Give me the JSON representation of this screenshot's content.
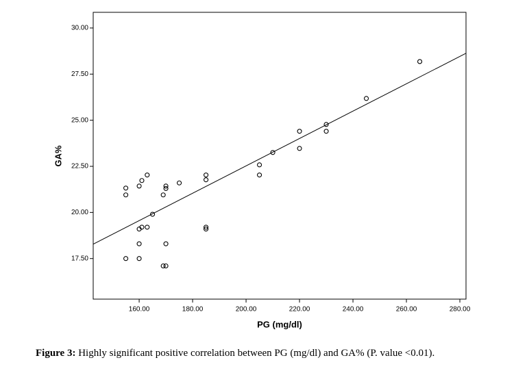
{
  "chart_data": {
    "type": "scatter",
    "xlabel": "PG (mg/dl)",
    "ylabel": "GA%",
    "x": [
      155,
      155,
      155,
      160,
      161,
      163,
      160,
      161,
      163,
      165,
      160,
      160,
      169,
      170,
      170,
      170,
      169,
      170,
      175,
      185,
      185,
      185,
      185,
      205,
      205,
      210,
      220,
      220,
      230,
      230,
      245,
      265
    ],
    "y": [
      21.32,
      20.95,
      17.5,
      21.43,
      21.73,
      22.03,
      19.1,
      19.2,
      19.2,
      19.9,
      18.3,
      17.5,
      20.95,
      21.43,
      21.3,
      18.3,
      17.1,
      17.1,
      21.6,
      22.03,
      21.77,
      19.2,
      19.1,
      22.58,
      22.03,
      23.25,
      24.4,
      23.47,
      24.77,
      24.4,
      26.18,
      28.18
    ],
    "color": "#000000",
    "trend_line": {
      "x": [
        142.8,
        282.3
      ],
      "y": [
        18.28,
        28.63
      ]
    },
    "xlim": [
      142.8,
      282.3
    ],
    "ylim": [
      15.3,
      30.85
    ],
    "xticks": [
      {
        "value": 160,
        "label": "160.00"
      },
      {
        "value": 180,
        "label": "180.00"
      },
      {
        "value": 200,
        "label": "200.00"
      },
      {
        "value": 220,
        "label": "220.00"
      },
      {
        "value": 240,
        "label": "240.00"
      },
      {
        "value": 260,
        "label": "260.00"
      },
      {
        "value": 280,
        "label": "280.00"
      }
    ],
    "yticks": [
      {
        "value": 17.5,
        "label": "17.50"
      },
      {
        "value": 20,
        "label": "20.00"
      },
      {
        "value": 22.5,
        "label": "22.50"
      },
      {
        "value": 25,
        "label": "25.00"
      },
      {
        "value": 27.5,
        "label": "27.50"
      },
      {
        "value": 30,
        "label": "30.00"
      }
    ],
    "grid": false
  },
  "caption": {
    "label": "Figure 3:",
    "text": "Highly significant positive correlation between PG (mg/dl) and GA% (P. value <0.01)."
  }
}
